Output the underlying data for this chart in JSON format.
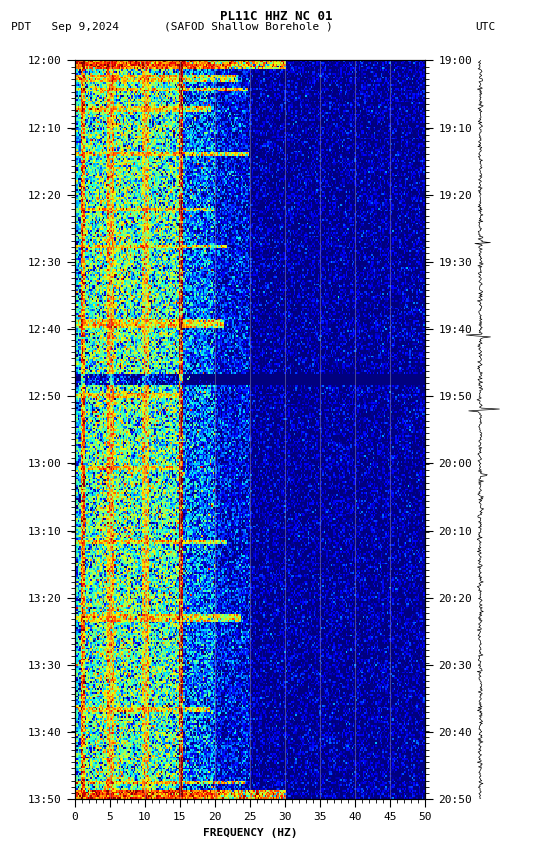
{
  "title_line1": "PL11C HHZ NC 01",
  "title_line2_left": "PDT   Sep 9,2024",
  "title_line2_center": "(SAFOD Shallow Borehole )",
  "title_line2_right": "UTC",
  "xlabel": "FREQUENCY (HZ)",
  "freq_min": 0,
  "freq_max": 50,
  "freq_ticks": [
    0,
    5,
    10,
    15,
    20,
    25,
    30,
    35,
    40,
    45,
    50
  ],
  "left_time_labels": [
    "12:00",
    "12:10",
    "12:20",
    "12:30",
    "12:40",
    "12:50",
    "13:00",
    "13:10",
    "13:20",
    "13:30",
    "13:40",
    "13:50"
  ],
  "right_time_labels": [
    "19:00",
    "19:10",
    "19:20",
    "19:30",
    "19:40",
    "19:50",
    "20:00",
    "20:10",
    "20:20",
    "20:30",
    "20:40",
    "20:50"
  ],
  "vertical_lines_freq": [
    5,
    10,
    15,
    20,
    25,
    30,
    35,
    40,
    45
  ],
  "vertical_lines_color": "#aaaaaa",
  "background_color": "#ffffff",
  "fig_width": 5.52,
  "fig_height": 8.64,
  "dpi": 100
}
